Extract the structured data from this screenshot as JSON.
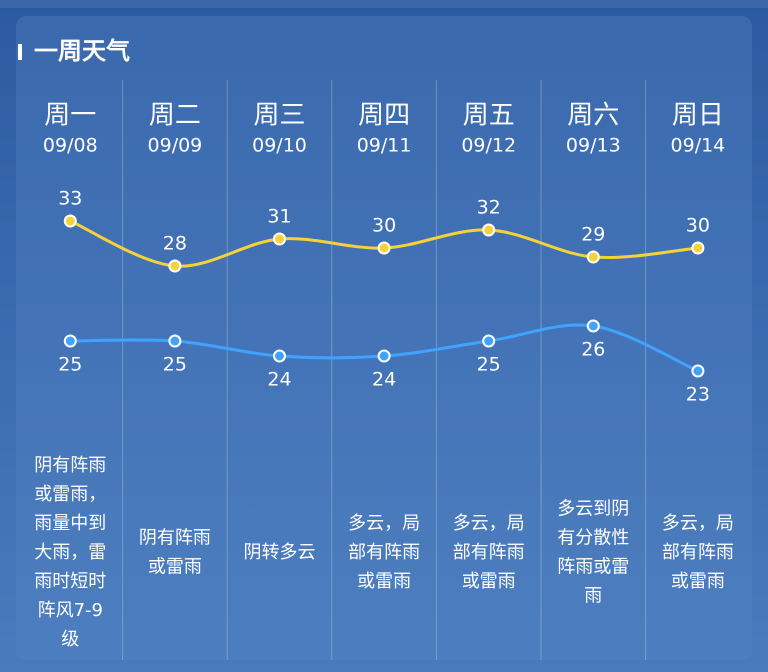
{
  "title": "一周天气",
  "days": [
    {
      "name": "周一",
      "date": "09/08",
      "desc": [
        "阴有阵雨",
        "或雷雨，",
        "雨量中到",
        "大雨，雷",
        "雨时短时",
        "阵风7-9",
        "级"
      ]
    },
    {
      "name": "周二",
      "date": "09/09",
      "desc": [
        "阴有阵雨",
        "或雷雨"
      ]
    },
    {
      "name": "周三",
      "date": "09/10",
      "desc": [
        "阴转多云"
      ]
    },
    {
      "name": "周四",
      "date": "09/11",
      "desc": [
        "多云，局",
        "部有阵雨",
        "或雷雨"
      ]
    },
    {
      "name": "周五",
      "date": "09/12",
      "desc": [
        "多云，局",
        "部有阵雨",
        "或雷雨"
      ]
    },
    {
      "name": "周六",
      "date": "09/13",
      "desc": [
        "多云到阴",
        "有分散性",
        "阵雨或雷",
        "雨"
      ]
    },
    {
      "name": "周日",
      "date": "09/14",
      "desc": [
        "多云，局",
        "部有阵雨",
        "或雷雨"
      ]
    }
  ],
  "high": [
    33,
    28,
    31,
    30,
    32,
    29,
    30
  ],
  "low": [
    25,
    25,
    24,
    24,
    25,
    26,
    23
  ]
}
